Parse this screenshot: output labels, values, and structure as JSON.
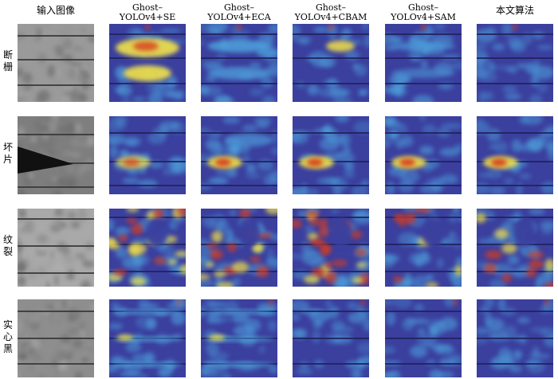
{
  "headers": [
    "输入图像",
    "Ghost–\nYOLOv4+SE",
    "Ghost–\nYOLOv4+ECA",
    "Ghost–\nYOLOv4+CBAM",
    "Ghost–\nYOLOv4+SAM",
    "本文算法"
  ],
  "header_lines": [
    [
      "输入图像"
    ],
    [
      "Ghost–",
      "YOLOv4+SE"
    ],
    [
      "Ghost–",
      "YOLOv4+ECA"
    ],
    [
      "Ghost–",
      "YOLOv4+CBAM"
    ],
    [
      "Ghost–",
      "YOLOv4+SAM"
    ],
    [
      "本文算法"
    ]
  ],
  "rows": [
    {
      "label_lines": [
        "断",
        "栅"
      ],
      "label": "断栅"
    },
    {
      "label_lines": [
        "坏",
        "片"
      ],
      "label": "坏片"
    },
    {
      "label_lines": [
        "纹",
        "裂"
      ],
      "label": "纹裂"
    },
    {
      "label_lines": [
        "实",
        "心",
        "黑"
      ],
      "label": "实心黑"
    }
  ],
  "colors": {
    "heat_low": "#3b3f9e",
    "heat_mid": "#4fa8e0",
    "heat_hot": "#f2e24a",
    "heat_max": "#d83a1e",
    "gray_panel": "#8c8c8c"
  }
}
